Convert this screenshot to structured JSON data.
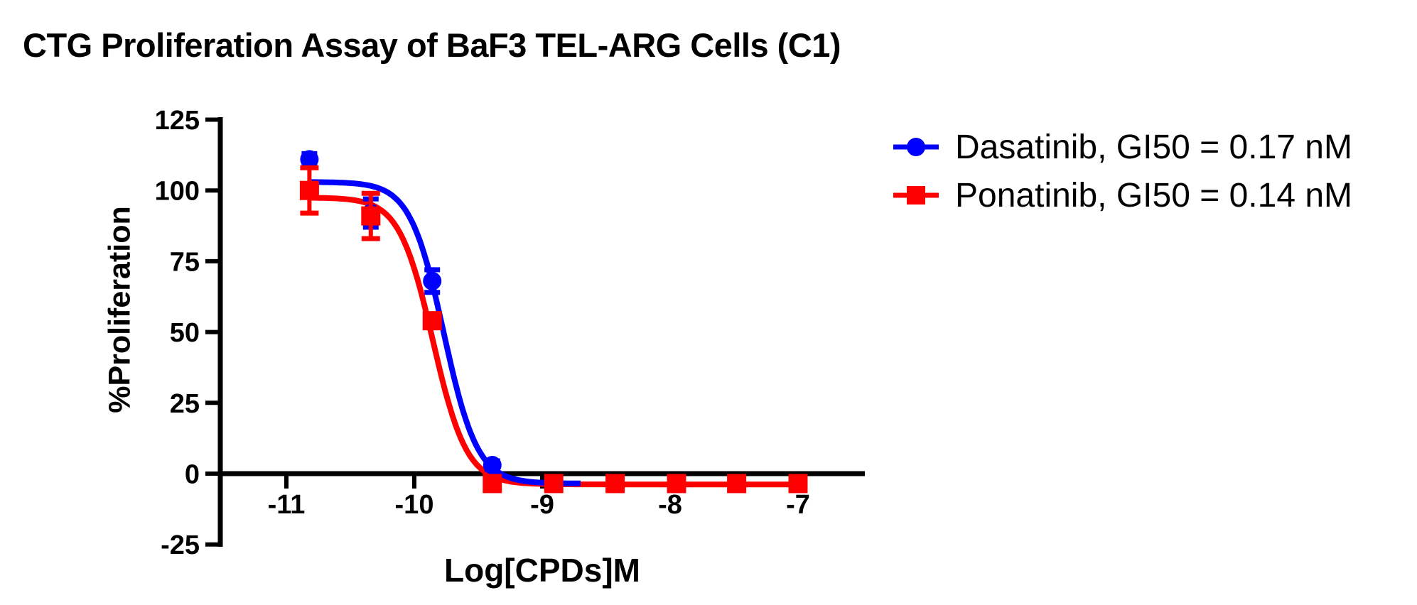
{
  "title": "CTG Proliferation Assay of BaF3 TEL-ARG Cells (C1)",
  "legend": {
    "position": "right",
    "items": [
      {
        "label": "Dasatinib, GI50 = 0.17 nM",
        "marker": "circle",
        "color": "#0000ff"
      },
      {
        "label": "Ponatinib, GI50 = 0.14 nM",
        "marker": "square",
        "color": "#ff0000"
      }
    ]
  },
  "chart_data": {
    "type": "line",
    "title": "CTG Proliferation Assay of BaF3 TEL-ARG Cells (C1)",
    "xlabel": "Log[CPDs]M",
    "ylabel": "%Proliferation",
    "x_ticks": [
      -11,
      -10,
      -9,
      -8,
      -7
    ],
    "y_ticks": [
      125,
      100,
      75,
      50,
      25,
      0,
      -25
    ],
    "xlim": [
      -11.54,
      -6.48
    ],
    "ylim": [
      -25,
      125
    ],
    "grid": false,
    "legend_position": "right",
    "series": [
      {
        "name": "Dasatinib, GI50 = 0.17 nM",
        "drug": "Dasatinib",
        "gi50_label": "GI50 = 0.17 nM",
        "color": "#0000ff",
        "marker": "circle",
        "x": [
          -10.82,
          -10.34,
          -9.86,
          -9.39
        ],
        "y": [
          111,
          92,
          68,
          3
        ],
        "sem": [
          2,
          5,
          4,
          1.5
        ],
        "fit": {
          "type": "4PL",
          "top": 103,
          "bottom": -3.5,
          "log_ic50": -9.77,
          "hill": 3.3,
          "x_range": [
            -10.82,
            -8.7
          ]
        }
      },
      {
        "name": "Ponatinib, GI50 = 0.14 nM",
        "drug": "Ponatinib",
        "gi50_label": "GI50 = 0.14 nM",
        "color": "#ff0000",
        "marker": "square",
        "x": [
          -10.82,
          -10.34,
          -9.86,
          -9.39,
          -8.91,
          -8.43,
          -7.95,
          -7.48,
          -7.0
        ],
        "y": [
          100,
          91,
          54,
          -3.5,
          -3.5,
          -3.5,
          -3.5,
          -3.5,
          -3.5
        ],
        "sem": [
          8,
          8,
          1.5,
          1,
          0,
          0,
          0,
          0,
          0
        ],
        "fit": {
          "type": "4PL",
          "top": 97.5,
          "bottom": -3.8,
          "log_ic50": -9.854,
          "hill": 3.3,
          "x_range": [
            -10.82,
            -7.0
          ]
        }
      }
    ]
  }
}
